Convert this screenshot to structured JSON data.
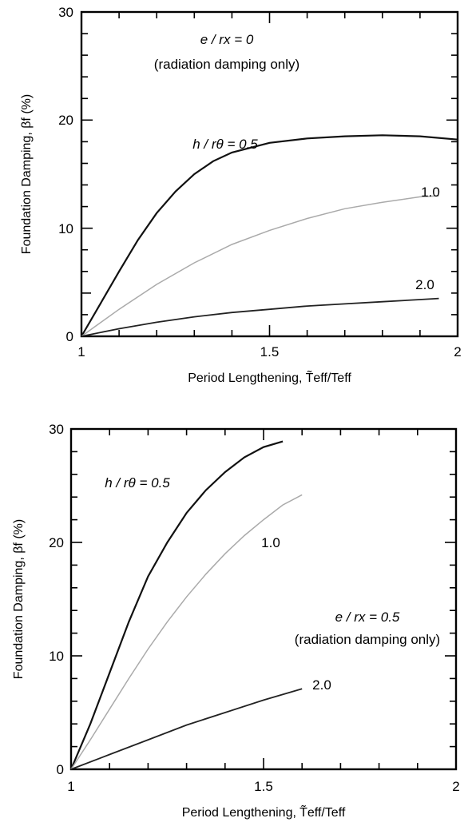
{
  "chart_data": [
    {
      "type": "line",
      "xlabel": "Period Lengthening, T̃eff/Teff",
      "ylabel": "Foundation Damping, βf (%)",
      "xlim": [
        1,
        2
      ],
      "ylim": [
        0,
        30
      ],
      "x_ticks": [
        "1",
        "1.5",
        "2"
      ],
      "y_ticks": [
        "0",
        "10",
        "20",
        "30"
      ],
      "annotations": [
        "e / rx = 0",
        "(radiation damping only)"
      ],
      "series": [
        {
          "name": "h / rθ = 0.5",
          "color": "#111111",
          "x": [
            1.0,
            1.05,
            1.1,
            1.15,
            1.2,
            1.25,
            1.3,
            1.35,
            1.4,
            1.5,
            1.6,
            1.7,
            1.8,
            1.9,
            2.0
          ],
          "y": [
            0,
            3.0,
            6.0,
            8.9,
            11.4,
            13.4,
            15.0,
            16.2,
            17.0,
            17.9,
            18.3,
            18.5,
            18.6,
            18.5,
            18.2
          ]
        },
        {
          "name": "1.0",
          "color": "#aaaaaa",
          "x": [
            1.0,
            1.1,
            1.2,
            1.3,
            1.4,
            1.5,
            1.6,
            1.7,
            1.8,
            1.9,
            1.95
          ],
          "y": [
            0,
            2.5,
            4.8,
            6.8,
            8.5,
            9.8,
            10.9,
            11.8,
            12.4,
            12.9,
            13.0
          ]
        },
        {
          "name": "2.0",
          "color": "#222222",
          "x": [
            1.0,
            1.1,
            1.2,
            1.3,
            1.4,
            1.5,
            1.6,
            1.7,
            1.8,
            1.9,
            1.95
          ],
          "y": [
            0,
            0.7,
            1.3,
            1.8,
            2.2,
            2.5,
            2.8,
            3.0,
            3.2,
            3.4,
            3.5
          ]
        }
      ]
    },
    {
      "type": "line",
      "xlabel": "Period Lengthening, T̃eff/Teff",
      "ylabel": "Foundation Damping, βf (%)",
      "xlim": [
        1,
        2
      ],
      "ylim": [
        0,
        30
      ],
      "x_ticks": [
        "1",
        "1.5",
        "2"
      ],
      "y_ticks": [
        "0",
        "10",
        "20",
        "30"
      ],
      "annotations": [
        "e / rx = 0.5",
        "(radiation damping only)"
      ],
      "series": [
        {
          "name": "h / rθ = 0.5",
          "color": "#111111",
          "x": [
            1.0,
            1.05,
            1.1,
            1.15,
            1.2,
            1.25,
            1.3,
            1.35,
            1.4,
            1.45,
            1.5,
            1.55
          ],
          "y": [
            0,
            4.0,
            8.5,
            13.0,
            17.0,
            20.0,
            22.6,
            24.6,
            26.2,
            27.5,
            28.4,
            28.9
          ]
        },
        {
          "name": "1.0",
          "color": "#aaaaaa",
          "x": [
            1.0,
            1.05,
            1.1,
            1.15,
            1.2,
            1.25,
            1.3,
            1.35,
            1.4,
            1.45,
            1.5,
            1.55,
            1.6
          ],
          "y": [
            0,
            2.6,
            5.3,
            8.0,
            10.6,
            13.0,
            15.2,
            17.2,
            19.0,
            20.6,
            22.0,
            23.3,
            24.2
          ]
        },
        {
          "name": "2.0",
          "color": "#222222",
          "x": [
            1.0,
            1.1,
            1.2,
            1.3,
            1.4,
            1.5,
            1.6
          ],
          "y": [
            0,
            1.3,
            2.6,
            3.9,
            5.0,
            6.1,
            7.1
          ]
        }
      ]
    }
  ]
}
